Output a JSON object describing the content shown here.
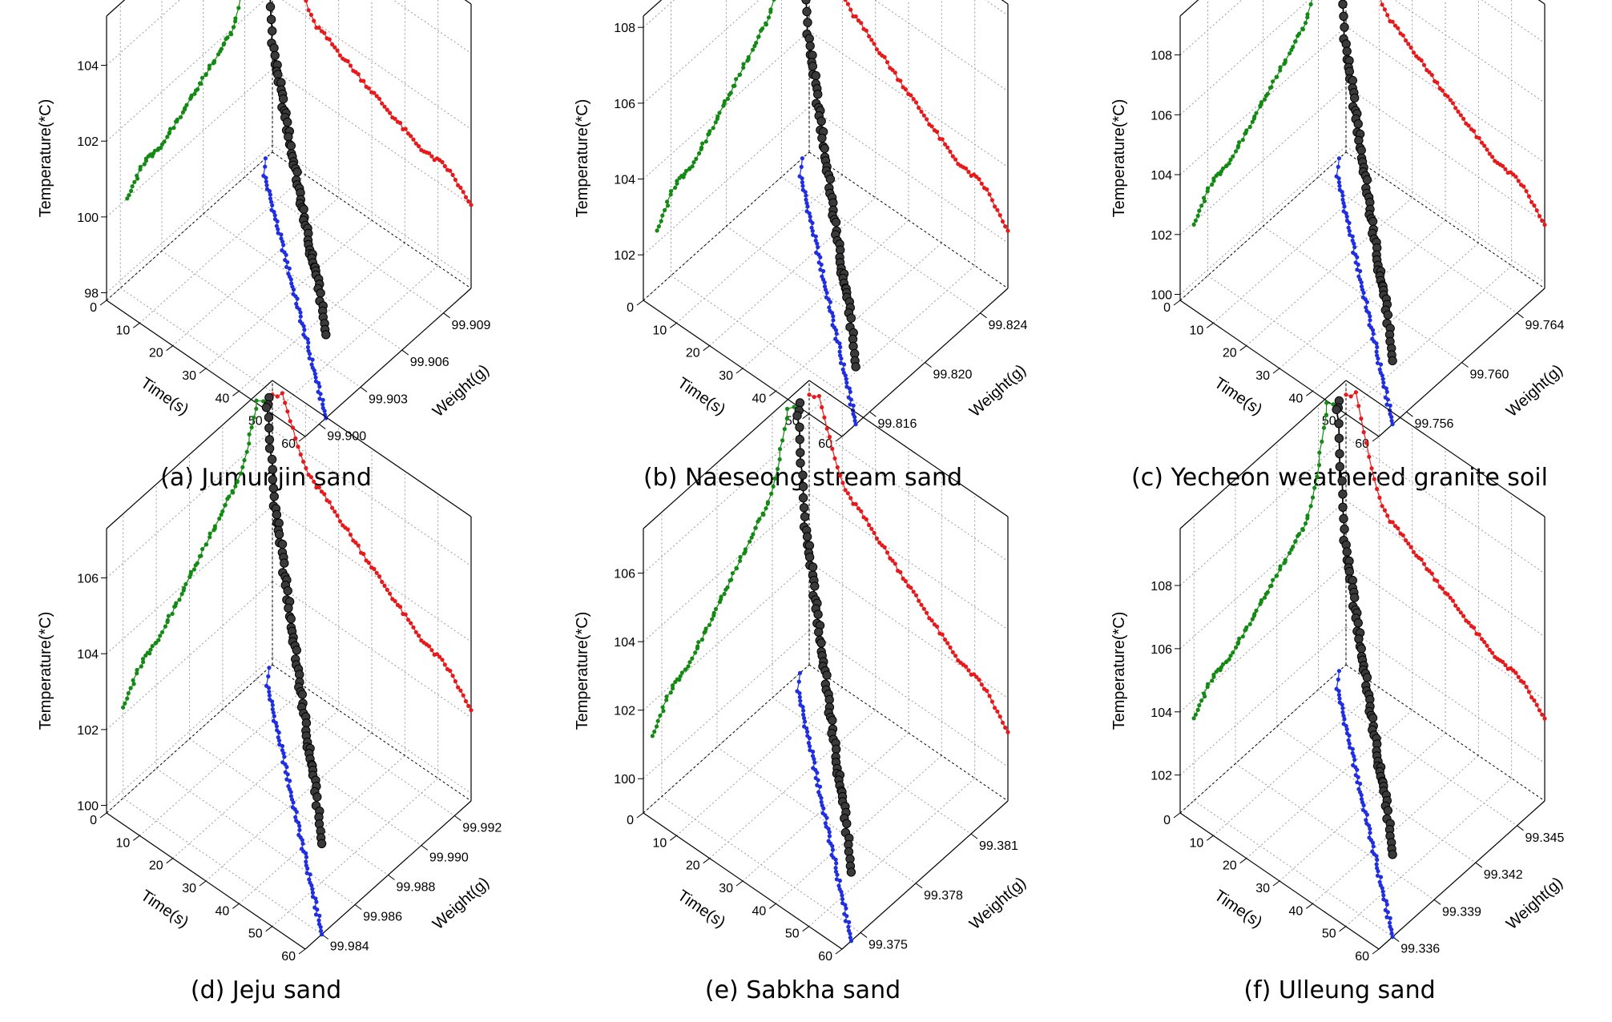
{
  "figure": {
    "chart_data": [
      {
        "type": "line3d",
        "caption": "(a) Jumunjin sand",
        "xlabel": "Time(s)",
        "ylabel": "Weight(g)",
        "zlabel": "Temperature(*C)",
        "xlim": [
          0,
          60
        ],
        "ylim": [
          99.899,
          99.911
        ],
        "zlim": [
          97.8,
          105.3
        ],
        "xticks": [
          "0",
          "10",
          "20",
          "30",
          "40",
          "50",
          "60"
        ],
        "yticks": [
          {
            "v": 99.9,
            "l": "99.900"
          },
          {
            "v": 99.903,
            "l": "99.903"
          },
          {
            "v": 99.906,
            "l": "99.906"
          },
          {
            "v": 99.909,
            "l": "99.909"
          }
        ],
        "zticks": [
          {
            "v": 98,
            "l": "98"
          },
          {
            "v": 100,
            "l": "100"
          },
          {
            "v": 102,
            "l": "102"
          },
          {
            "v": 104,
            "l": "104"
          }
        ],
        "traj": {
          "w0": 99.9105,
          "w1": 99.9005,
          "tA": 3,
          "tB": 14,
          "tC": 60,
          "zA": 105.2,
          "zB": 101.9,
          "zC": 99.9,
          "rZ": 0.9,
          "rT": 7
        }
      },
      {
        "type": "line3d",
        "caption": "(b) Naeseong stream sand",
        "xlabel": "Time(s)",
        "ylabel": "Weight(g)",
        "zlabel": "Temperature(*C)",
        "xlim": [
          0,
          60
        ],
        "ylim": [
          99.814,
          99.826
        ],
        "zlim": [
          100.8,
          108.3
        ],
        "xticks": [
          "0",
          "10",
          "20",
          "30",
          "40",
          "50",
          "60"
        ],
        "yticks": [
          {
            "v": 99.816,
            "l": "99.816"
          },
          {
            "v": 99.82,
            "l": "99.820"
          },
          {
            "v": 99.824,
            "l": "99.824"
          }
        ],
        "zticks": [
          {
            "v": 102,
            "l": "102"
          },
          {
            "v": 104,
            "l": "104"
          },
          {
            "v": 106,
            "l": "106"
          },
          {
            "v": 108,
            "l": "108"
          }
        ],
        "traj": {
          "w0": 99.8255,
          "w1": 99.815,
          "tA": 3,
          "tB": 14,
          "tC": 60,
          "zA": 108.2,
          "zB": 105.2,
          "zC": 102.2,
          "rZ": 1.1,
          "rT": 7
        }
      },
      {
        "type": "line3d",
        "caption": "(c) Yecheon weathered granite soil",
        "xlabel": "Time(s)",
        "ylabel": "Weight(g)",
        "zlabel": "Temperature(*C)",
        "xlim": [
          0,
          60
        ],
        "ylim": [
          99.754,
          99.766
        ],
        "zlim": [
          99.8,
          109.3
        ],
        "xticks": [
          "0",
          "10",
          "20",
          "30",
          "40",
          "50",
          "60"
        ],
        "yticks": [
          {
            "v": 99.756,
            "l": "99.756"
          },
          {
            "v": 99.76,
            "l": "99.760"
          },
          {
            "v": 99.764,
            "l": "99.764"
          }
        ],
        "zticks": [
          {
            "v": 100,
            "l": "100"
          },
          {
            "v": 102,
            "l": "102"
          },
          {
            "v": 104,
            "l": "104"
          },
          {
            "v": 106,
            "l": "106"
          },
          {
            "v": 108,
            "l": "108"
          }
        ],
        "traj": {
          "w0": 99.7655,
          "w1": 99.755,
          "tA": 3,
          "tB": 14,
          "tC": 60,
          "zA": 109.1,
          "zB": 105.2,
          "zC": 101.8,
          "rZ": 1.2,
          "rT": 7
        }
      },
      {
        "type": "line3d",
        "caption": "(d) Jeju sand",
        "xlabel": "Time(s)",
        "ylabel": "Weight(g)",
        "zlabel": "Temperature(*C)",
        "xlim": [
          0,
          60
        ],
        "ylim": [
          99.983,
          99.993
        ],
        "zlim": [
          99.8,
          107.3
        ],
        "xticks": [
          "0",
          "10",
          "20",
          "30",
          "40",
          "50",
          "60"
        ],
        "yticks": [
          {
            "v": 99.984,
            "l": "99.984"
          },
          {
            "v": 99.986,
            "l": "99.986"
          },
          {
            "v": 99.988,
            "l": "99.988"
          },
          {
            "v": 99.99,
            "l": "99.990"
          },
          {
            "v": 99.992,
            "l": "99.992"
          }
        ],
        "zticks": [
          {
            "v": 100,
            "l": "100"
          },
          {
            "v": 102,
            "l": "102"
          },
          {
            "v": 104,
            "l": "104"
          },
          {
            "v": 106,
            "l": "106"
          }
        ],
        "traj": {
          "w0": 99.9928,
          "w1": 99.984,
          "tA": 3,
          "tB": 14,
          "tC": 60,
          "zA": 107.2,
          "zB": 105.3,
          "zC": 102.1,
          "rZ": 0.8,
          "rT": 7
        }
      },
      {
        "type": "line3d",
        "caption": "(e) Sabkha sand",
        "xlabel": "Time(s)",
        "ylabel": "Weight(g)",
        "zlabel": "Temperature(*C)",
        "xlim": [
          0,
          60
        ],
        "ylim": [
          99.374,
          99.383
        ],
        "zlim": [
          99.0,
          107.3
        ],
        "xticks": [
          "0",
          "10",
          "20",
          "30",
          "40",
          "50",
          "60"
        ],
        "yticks": [
          {
            "v": 99.375,
            "l": "99.375"
          },
          {
            "v": 99.378,
            "l": "99.378"
          },
          {
            "v": 99.381,
            "l": "99.381"
          }
        ],
        "zticks": [
          {
            "v": 100,
            "l": "100"
          },
          {
            "v": 102,
            "l": "102"
          },
          {
            "v": 104,
            "l": "104"
          },
          {
            "v": 106,
            "l": "106"
          }
        ],
        "traj": {
          "w0": 99.3825,
          "w1": 99.3745,
          "tA": 3,
          "tB": 14,
          "tC": 60,
          "zA": 107.1,
          "zB": 104.6,
          "zC": 100.9,
          "rZ": 1.0,
          "rT": 7
        }
      },
      {
        "type": "line3d",
        "caption": "(f) Ulleung sand",
        "xlabel": "Time(s)",
        "ylabel": "Weight(g)",
        "zlabel": "Temperature(*C)",
        "xlim": [
          0,
          60
        ],
        "ylim": [
          99.335,
          99.347
        ],
        "zlim": [
          100.8,
          109.8
        ],
        "xticks": [
          "0",
          "10",
          "20",
          "30",
          "40",
          "50",
          "60"
        ],
        "yticks": [
          {
            "v": 99.336,
            "l": "99.336"
          },
          {
            "v": 99.339,
            "l": "99.339"
          },
          {
            "v": 99.342,
            "l": "99.342"
          },
          {
            "v": 99.345,
            "l": "99.345"
          }
        ],
        "zticks": [
          {
            "v": 102,
            "l": "102"
          },
          {
            "v": 104,
            "l": "104"
          },
          {
            "v": 106,
            "l": "106"
          },
          {
            "v": 108,
            "l": "108"
          }
        ],
        "traj": {
          "w0": 99.3465,
          "w1": 99.336,
          "tA": 3,
          "tB": 14,
          "tC": 60,
          "zA": 109.7,
          "zB": 106.3,
          "zC": 103.3,
          "rZ": 1.0,
          "rT": 7
        }
      }
    ]
  },
  "colors": {
    "main": "#000000",
    "main_marker": "#3a3a3a",
    "projection_time_temp": "#e8191a",
    "projection_weight_temp": "#138a13",
    "projection_time_weight": "#1f2ee0",
    "box": "#000000",
    "grid": "#9a9a9a"
  }
}
